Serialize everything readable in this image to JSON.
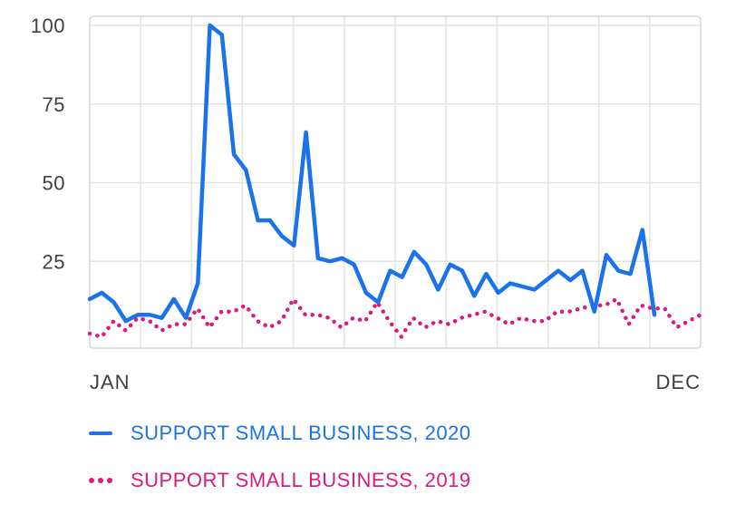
{
  "chart_data": {
    "type": "line",
    "categories_start_label": "JAN",
    "categories_end_label": "DEC",
    "x_tick_labels": [
      "JAN",
      "DEC"
    ],
    "y_tick_labels": [
      "100",
      "75",
      "50",
      "25"
    ],
    "y_ticks": [
      100,
      75,
      50,
      25
    ],
    "ylim": [
      0,
      100
    ],
    "grid": true,
    "legend_position": "bottom",
    "series": [
      {
        "name": "SUPPORT SMALL BUSINESS, 2020",
        "color": "#1a73e8",
        "style": "solid",
        "values": [
          13,
          15,
          12,
          6,
          8,
          8,
          7,
          13,
          7,
          18,
          100,
          97,
          59,
          54,
          38,
          38,
          33,
          30,
          66,
          26,
          25,
          26,
          24,
          15,
          12,
          22,
          20,
          28,
          24,
          16,
          24,
          22,
          14,
          21,
          15,
          18,
          17,
          16,
          19,
          22,
          19,
          22,
          9,
          27,
          22,
          21,
          35,
          8
        ]
      },
      {
        "name": "SUPPORT SMALL BUSINESS, 2019",
        "color": "#d81b7d",
        "style": "dotted",
        "values": [
          2,
          1,
          6,
          3,
          7,
          6,
          3,
          5,
          5,
          10,
          4,
          9,
          9,
          11,
          6,
          4,
          6,
          13,
          8,
          8,
          7,
          4,
          7,
          6,
          12,
          6,
          1,
          7,
          4,
          6,
          5,
          7,
          8,
          9,
          7,
          5,
          7,
          6,
          6,
          9,
          9,
          10,
          11,
          11,
          13,
          5,
          11,
          10,
          10,
          4,
          6,
          8
        ]
      }
    ]
  }
}
